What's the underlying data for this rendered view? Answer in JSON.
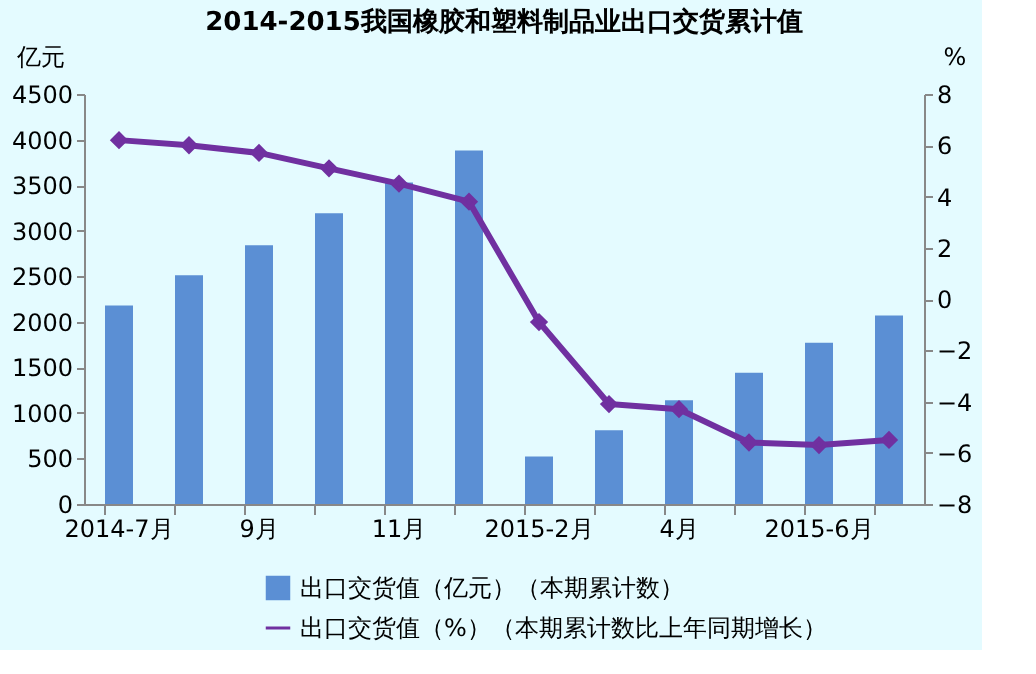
{
  "chart_data": {
    "type": "bar",
    "title": "2014-2015我国橡胶和塑料制品业出口交货累计值",
    "ylabel": "亿元",
    "y2label": "%",
    "categories": [
      "2014-7月",
      null,
      "9月",
      null,
      "11月",
      null,
      "2015-2月",
      null,
      "4月",
      null,
      "2015-6月",
      null
    ],
    "series": [
      {
        "name": "出口交货值（亿元）（本期累计数）",
        "color": "#5b8fd4",
        "values": [
          2180,
          2510,
          2840,
          3190,
          3530,
          3880,
          520,
          810,
          1140,
          1440,
          1770,
          2070
        ]
      },
      {
        "name": "出口交货值（%）（本期累计数比上年同期增长）",
        "type": "line",
        "axis": "y2",
        "color": "#7030a0",
        "marker": "diamond",
        "values": [
          6.2,
          6.0,
          5.7,
          5.1,
          4.5,
          3.8,
          -0.9,
          -4.1,
          -4.3,
          -5.6,
          -5.7,
          -5.5
        ]
      }
    ],
    "ylim": [
      0,
      4500
    ],
    "yticks": [
      0,
      500,
      1000,
      1500,
      2000,
      2500,
      3000,
      3500,
      4000,
      4500
    ],
    "y2lim": [
      -8,
      8
    ],
    "y2ticks": [
      -8,
      -6,
      -4,
      -2,
      0,
      2,
      4,
      6,
      8
    ],
    "legend": "bottom",
    "grid": false
  }
}
